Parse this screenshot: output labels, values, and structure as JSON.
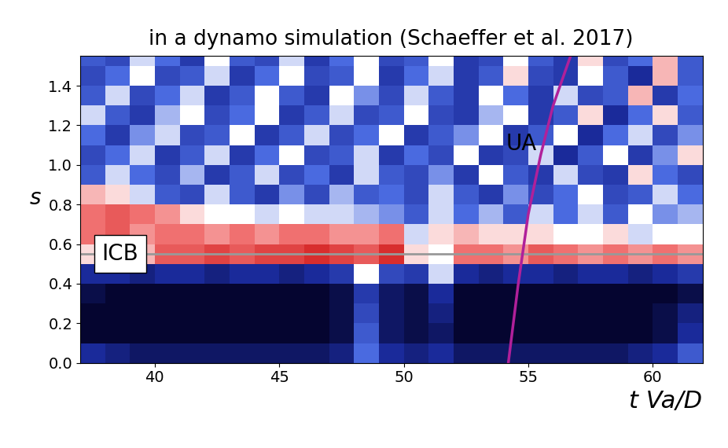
{
  "chart_data": {
    "type": "heatmap",
    "title": "in a dynamo simulation (Schaeffer et al. 2017)",
    "x_label": "t Va/D",
    "y_label": "s",
    "xlim": [
      37,
      62
    ],
    "ylim": [
      0,
      1.55
    ],
    "xticks": [
      40,
      45,
      50,
      55,
      60
    ],
    "yticks": [
      0.0,
      0.2,
      0.4,
      0.6,
      0.8,
      1.0,
      1.2,
      1.4
    ],
    "color_range": [
      -1.0,
      1.0
    ],
    "x_edges": [
      37,
      38,
      39,
      40,
      41,
      42,
      43,
      44,
      45,
      46,
      47,
      48,
      49,
      50,
      51,
      52,
      53,
      54,
      55,
      56,
      57,
      58,
      59,
      60,
      61,
      62
    ],
    "y_edges": [
      0.0,
      0.1,
      0.2,
      0.3,
      0.4,
      0.5,
      0.6,
      0.7,
      0.8,
      0.9,
      1.0,
      1.1,
      1.2,
      1.3,
      1.4,
      1.5,
      1.6
    ],
    "cells": [
      [
        -0.6,
        -0.7,
        -0.8,
        -0.8,
        -0.8,
        -0.8,
        -0.8,
        -0.8,
        -0.8,
        -0.8,
        -0.7,
        -0.2,
        -0.6,
        -0.7,
        -0.6,
        -0.8,
        -0.8,
        -0.8,
        -0.8,
        -0.8,
        -0.8,
        -0.8,
        -0.7,
        -0.6,
        -0.3
      ],
      [
        -1.0,
        -1.0,
        -1.0,
        -1.0,
        -1.0,
        -1.0,
        -1.0,
        -1.0,
        -1.0,
        -1.0,
        -0.9,
        -0.3,
        -0.8,
        -0.9,
        -0.8,
        -1.0,
        -1.0,
        -1.0,
        -1.0,
        -1.0,
        -1.0,
        -1.0,
        -1.0,
        -0.9,
        -0.6
      ],
      [
        -1.0,
        -1.0,
        -1.0,
        -1.0,
        -1.0,
        -1.0,
        -1.0,
        -1.0,
        -1.0,
        -1.0,
        -0.9,
        -0.4,
        -0.8,
        -0.9,
        -0.7,
        -1.0,
        -1.0,
        -1.0,
        -1.0,
        -1.0,
        -1.0,
        -1.0,
        -1.0,
        -0.9,
        -0.7
      ],
      [
        -0.9,
        -1.0,
        -1.0,
        -1.0,
        -1.0,
        -1.0,
        -1.0,
        -1.0,
        -1.0,
        -1.0,
        -0.9,
        -0.5,
        -0.8,
        -0.9,
        -0.6,
        -1.0,
        -1.0,
        -1.0,
        -1.0,
        -1.0,
        -1.0,
        -1.0,
        -1.0,
        -1.0,
        -0.9
      ],
      [
        -0.6,
        -0.6,
        -0.7,
        -0.6,
        -0.6,
        -0.7,
        -0.6,
        -0.6,
        -0.7,
        -0.6,
        -0.5,
        0.2,
        -0.4,
        -0.5,
        0.1,
        -0.6,
        -0.7,
        -0.6,
        -0.6,
        -0.7,
        -0.6,
        -0.6,
        -0.7,
        -0.6,
        -0.5
      ],
      [
        0.3,
        0.3,
        0.4,
        0.7,
        0.7,
        0.8,
        0.7,
        0.8,
        0.8,
        0.9,
        0.8,
        0.7,
        0.9,
        0.3,
        0.2,
        0.6,
        0.6,
        0.5,
        0.7,
        0.6,
        0.5,
        0.6,
        0.5,
        0.6,
        0.5
      ],
      [
        0.6,
        0.7,
        0.5,
        0.6,
        0.6,
        0.5,
        0.6,
        0.5,
        0.6,
        0.6,
        0.5,
        0.5,
        0.6,
        0.1,
        0.3,
        0.4,
        0.3,
        0.3,
        0.3,
        0.2,
        0.2,
        0.3,
        0.1,
        0.2,
        0.2
      ],
      [
        0.6,
        0.7,
        0.6,
        0.5,
        0.3,
        0.2,
        0.2,
        0.1,
        0.2,
        0.1,
        0.1,
        0.0,
        -0.1,
        -0.3,
        0.1,
        -0.2,
        0.0,
        -0.3,
        0.1,
        -0.2,
        0.1,
        -0.3,
        0.2,
        -0.1,
        0.0
      ],
      [
        0.4,
        0.3,
        0.1,
        -0.3,
        -0.4,
        0.1,
        -0.3,
        -0.5,
        -0.1,
        -0.4,
        0.0,
        -0.3,
        -0.2,
        -0.4,
        0.1,
        -0.3,
        -0.5,
        -0.1,
        -0.4,
        -0.2,
        0.2,
        -0.4,
        -0.3,
        0.1,
        -0.2
      ],
      [
        -0.3,
        0.1,
        -0.2,
        -0.4,
        0.0,
        -0.5,
        -0.3,
        0.1,
        -0.4,
        -0.2,
        -0.5,
        0.1,
        -0.3,
        -0.4,
        -0.1,
        -0.5,
        0.2,
        -0.3,
        -0.5,
        0.1,
        -0.4,
        -0.5,
        0.3,
        -0.2,
        -0.4
      ],
      [
        -0.4,
        -0.2,
        0.1,
        -0.5,
        -0.3,
        0.1,
        -0.5,
        -0.2,
        0.2,
        -0.4,
        -0.3,
        0.1,
        -0.5,
        -0.2,
        -0.4,
        0.2,
        -0.5,
        -0.4,
        0.1,
        -0.6,
        -0.3,
        0.2,
        -0.5,
        -0.1,
        0.3
      ],
      [
        -0.2,
        -0.5,
        -0.1,
        0.1,
        -0.4,
        -0.3,
        0.2,
        -0.5,
        -0.3,
        0.1,
        -0.4,
        -0.2,
        0.2,
        -0.5,
        -0.3,
        -0.1,
        0.2,
        -0.5,
        -0.3,
        0.2,
        -0.6,
        -0.2,
        0.1,
        -0.4,
        -0.1
      ],
      [
        0.1,
        -0.3,
        -0.5,
        0.0,
        0.2,
        -0.4,
        -0.2,
        0.2,
        -0.5,
        -0.3,
        0.1,
        -0.4,
        -0.3,
        0.2,
        -0.4,
        -0.5,
        0.0,
        0.2,
        -0.5,
        -0.3,
        0.3,
        -0.6,
        -0.2,
        0.3,
        -0.3
      ],
      [
        -0.3,
        0.1,
        -0.4,
        -0.2,
        0.1,
        -0.5,
        -0.3,
        0.2,
        -0.3,
        -0.5,
        0.2,
        -0.1,
        -0.4,
        0.1,
        -0.3,
        -0.5,
        0.2,
        -0.2,
        -0.5,
        0.1,
        -0.4,
        -0.3,
        0.4,
        -0.5,
        -0.2
      ],
      [
        -0.4,
        -0.2,
        0.2,
        -0.4,
        -0.3,
        0.1,
        -0.5,
        -0.2,
        0.2,
        -0.4,
        -0.3,
        0.2,
        -0.5,
        -0.2,
        0.1,
        -0.5,
        -0.3,
        0.3,
        -0.4,
        -0.5,
        0.2,
        -0.3,
        -0.6,
        0.4,
        -0.3
      ],
      [
        -0.3,
        -0.4,
        0.1,
        -0.2,
        -0.5,
        0.2,
        -0.3,
        -0.4,
        0.1,
        -0.5,
        -0.2,
        0.2,
        -0.4,
        -0.3,
        0.2,
        -0.5,
        -0.4,
        0.2,
        -0.3,
        -0.5,
        0.3,
        -0.4,
        -0.2,
        0.4,
        -0.3
      ]
    ],
    "lines": [
      {
        "label": "ICB",
        "y": 0.55,
        "color": "#999999"
      }
    ],
    "series": [
      {
        "name": "UA",
        "type": "line",
        "color": "#b0209a",
        "x": [
          54.2,
          54.6,
          55.0,
          55.5,
          56.0,
          56.7
        ],
        "y": [
          0.0,
          0.4,
          0.75,
          1.05,
          1.3,
          1.55
        ]
      }
    ]
  }
}
